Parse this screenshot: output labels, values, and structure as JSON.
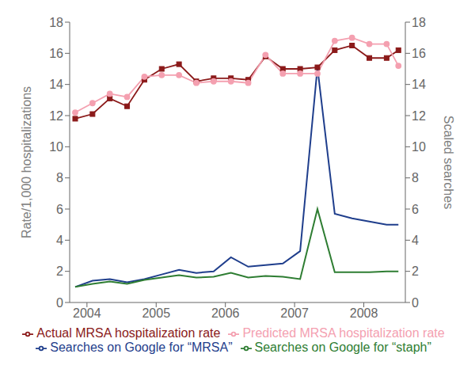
{
  "chart_data": {
    "type": "line",
    "x": [
      2003.83,
      2004.08,
      2004.33,
      2004.58,
      2004.83,
      2005.08,
      2005.33,
      2005.58,
      2005.83,
      2006.08,
      2006.33,
      2006.58,
      2006.83,
      2007.08,
      2007.33,
      2007.58,
      2007.83,
      2008.08,
      2008.33,
      2008.5
    ],
    "xlim": [
      2003.75,
      2008.6
    ],
    "xticks": [
      2004,
      2005,
      2006,
      2007,
      2008
    ],
    "ylim": [
      0,
      18
    ],
    "yticks": [
      0,
      2,
      4,
      6,
      8,
      10,
      12,
      14,
      16,
      18
    ],
    "y2lim": [
      0,
      18
    ],
    "y2ticks": [
      0,
      2,
      4,
      6,
      8,
      10,
      12,
      14,
      16,
      18
    ],
    "ylabel": "Rate/1,000 hospitalizations",
    "y2label": "Scaled searches",
    "grid": false,
    "legend": "bottom",
    "series": [
      {
        "name": "Actual MRSA hospitalization rate",
        "color": "#8B1A1A",
        "marker": "square",
        "line_style": "solid",
        "axis": "y",
        "values": [
          11.8,
          12.1,
          13.1,
          12.6,
          14.3,
          15.0,
          15.3,
          14.2,
          14.4,
          14.4,
          14.3,
          15.8,
          15.0,
          15.0,
          15.1,
          16.2,
          16.5,
          15.7,
          15.7,
          16.2
        ]
      },
      {
        "name": "Predicted MRSA hospitalization rate",
        "color": "#F4A0B0",
        "marker": "circle",
        "line_style": "solid",
        "axis": "y",
        "values": [
          12.2,
          12.8,
          13.4,
          13.2,
          14.5,
          14.6,
          14.6,
          14.1,
          14.2,
          14.2,
          14.1,
          15.9,
          14.7,
          14.7,
          14.7,
          16.8,
          17.0,
          16.6,
          16.6,
          15.2
        ]
      },
      {
        "name": "Searches on Google for “MRSA”",
        "color": "#1F3E8C",
        "marker": "none",
        "line_style": "solid",
        "axis": "y2",
        "values": [
          1.0,
          1.4,
          1.5,
          1.3,
          1.5,
          1.8,
          2.1,
          1.9,
          2.0,
          2.9,
          2.3,
          2.4,
          2.5,
          3.3,
          15.1,
          5.7,
          5.4,
          5.2,
          5.0,
          5.0
        ]
      },
      {
        "name": "Searches on Google for “staph”",
        "color": "#2E7D32",
        "marker": "none",
        "line_style": "solid",
        "axis": "y2",
        "values": [
          1.0,
          1.2,
          1.35,
          1.2,
          1.45,
          1.6,
          1.75,
          1.6,
          1.65,
          1.9,
          1.6,
          1.7,
          1.65,
          1.5,
          6.0,
          1.95,
          1.95,
          1.95,
          2.0,
          2.0
        ]
      }
    ]
  }
}
